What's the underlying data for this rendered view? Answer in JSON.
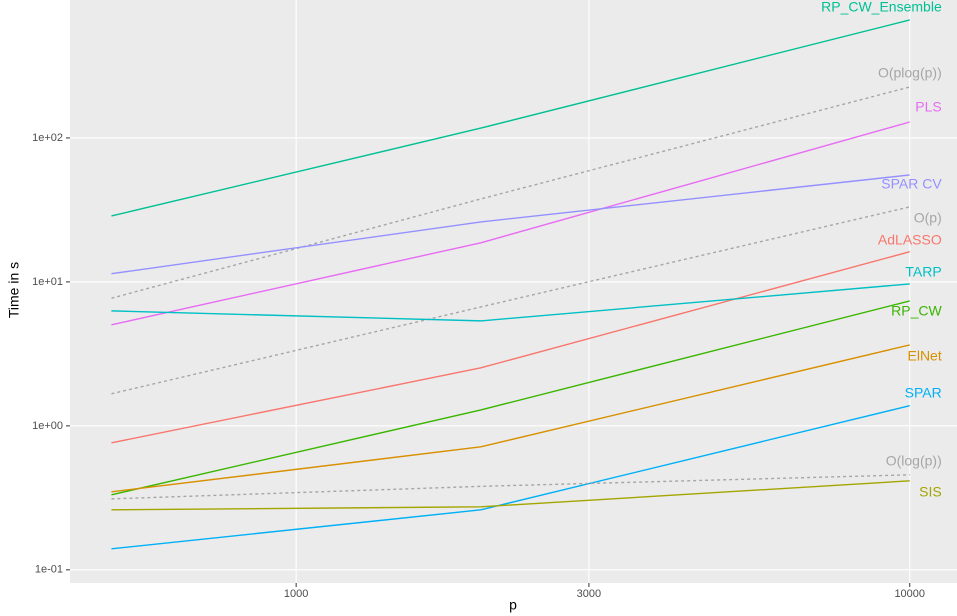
{
  "chart_data": {
    "type": "line",
    "x_label": "p",
    "y_label": "Time in s",
    "log_x": true,
    "log_y": true,
    "grid": true,
    "xlim": [
      428,
      11940
    ],
    "ylim": [
      0.081,
      908
    ],
    "xticks": [
      1000,
      3000,
      10000
    ],
    "yticks": [
      {
        "value": 0.1,
        "label": "1e-01"
      },
      {
        "value": 1,
        "label": "1e+00"
      },
      {
        "value": 10,
        "label": "1e+01"
      },
      {
        "value": 100,
        "label": "1e+02"
      }
    ],
    "x": [
      500,
      2000,
      10000
    ],
    "series": [
      {
        "name": "RP_CW_Ensemble",
        "color": "#00C094",
        "linetype": "solid",
        "values": [
          28.7,
          117,
          660
        ]
      },
      {
        "name": "O(plog(p))",
        "color": "#a6a6a6",
        "linetype": "dotted",
        "values": [
          7.7,
          37.7,
          226
        ]
      },
      {
        "name": "PLS",
        "color": "#E76BF3",
        "linetype": "solid",
        "values": [
          5.03,
          18.7,
          129
        ]
      },
      {
        "name": "SPAR CV",
        "color": "#9590FF",
        "linetype": "solid",
        "values": [
          11.4,
          26.1,
          55.3
        ]
      },
      {
        "name": "O(p)",
        "color": "#a6a6a6",
        "linetype": "dotted",
        "values": [
          1.67,
          6.7,
          33.2
        ]
      },
      {
        "name": "AdLASSO",
        "color": "#F8766D",
        "linetype": "solid",
        "values": [
          0.762,
          2.53,
          16.2
        ]
      },
      {
        "name": "TARP",
        "color": "#00BFC4",
        "linetype": "solid",
        "values": [
          6.29,
          5.36,
          9.68
        ]
      },
      {
        "name": "RP_CW",
        "color": "#39B600",
        "linetype": "solid",
        "values": [
          0.332,
          1.29,
          7.38
        ]
      },
      {
        "name": "ElNet",
        "color": "#D89000",
        "linetype": "solid",
        "values": [
          0.348,
          0.715,
          3.65
        ]
      },
      {
        "name": "SPAR",
        "color": "#00B0F6",
        "linetype": "solid",
        "values": [
          0.14,
          0.261,
          1.38
        ]
      },
      {
        "name": "O(log(p))",
        "color": "#a6a6a6",
        "linetype": "dotted",
        "values": [
          0.311,
          0.38,
          0.457
        ]
      },
      {
        "name": "SIS",
        "color": "#A3A500",
        "linetype": "solid",
        "values": [
          0.261,
          0.274,
          0.415
        ]
      }
    ]
  }
}
